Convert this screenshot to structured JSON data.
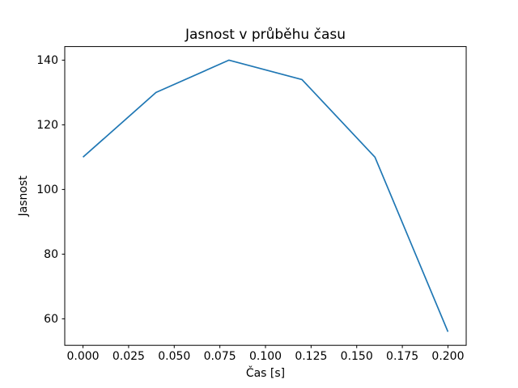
{
  "chart_data": {
    "type": "line",
    "title": "Jasnost v průběhu času",
    "xlabel": "Čas [s]",
    "ylabel": "Jasnost",
    "x": [
      0.0,
      0.04,
      0.08,
      0.12,
      0.16,
      0.2
    ],
    "y": [
      110,
      130,
      140,
      134,
      110,
      56
    ],
    "series": [
      {
        "name": "Jasnost",
        "x": [
          0.0,
          0.04,
          0.08,
          0.12,
          0.16,
          0.2
        ],
        "values": [
          110,
          130,
          140,
          134,
          110,
          56
        ]
      }
    ],
    "xlim": [
      -0.01,
      0.21
    ],
    "ylim": [
      51.8,
      144.2
    ],
    "xticks": [
      {
        "value": 0.0,
        "label": "0.000"
      },
      {
        "value": 0.025,
        "label": "0.025"
      },
      {
        "value": 0.05,
        "label": "0.050"
      },
      {
        "value": 0.075,
        "label": "0.075"
      },
      {
        "value": 0.1,
        "label": "0.100"
      },
      {
        "value": 0.125,
        "label": "0.125"
      },
      {
        "value": 0.15,
        "label": "0.150"
      },
      {
        "value": 0.175,
        "label": "0.175"
      },
      {
        "value": 0.2,
        "label": "0.200"
      }
    ],
    "yticks": [
      {
        "value": 60,
        "label": "60"
      },
      {
        "value": 80,
        "label": "80"
      },
      {
        "value": 100,
        "label": "100"
      },
      {
        "value": 120,
        "label": "120"
      },
      {
        "value": 140,
        "label": "140"
      }
    ],
    "grid": false,
    "legend_position": "none",
    "line_color": "#1f77b4",
    "frame_color": "#000000",
    "background_color": "#ffffff"
  }
}
